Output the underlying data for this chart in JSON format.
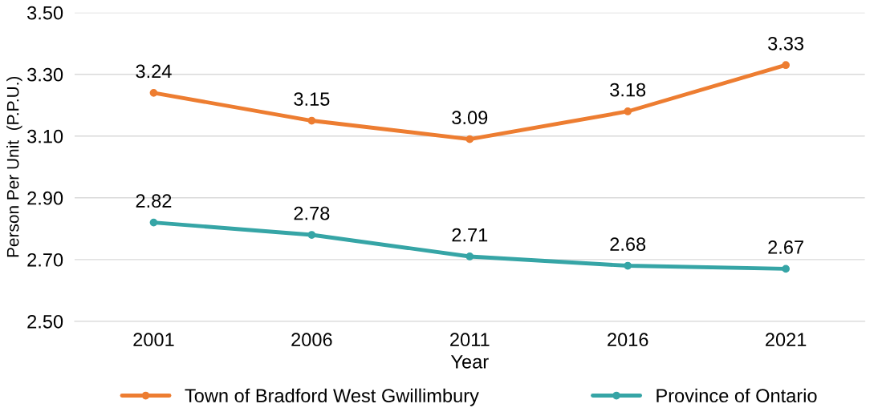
{
  "chart_data": {
    "type": "line",
    "xlabel": "Year",
    "ylabel": "Person Per Unit  (P.P.U.)",
    "categories": [
      "2001",
      "2006",
      "2011",
      "2016",
      "2021"
    ],
    "series": [
      {
        "name": "Town of Bradford West Gwillimbury",
        "color": "#ed7d31",
        "values": [
          3.24,
          3.15,
          3.09,
          3.18,
          3.33
        ]
      },
      {
        "name": "Province of Ontario",
        "color": "#36a5a6",
        "values": [
          2.82,
          2.78,
          2.71,
          2.68,
          2.67
        ]
      }
    ],
    "ylim": [
      2.5,
      3.5
    ],
    "yticks": [
      {
        "value": 2.5,
        "label": "2.50"
      },
      {
        "value": 2.7,
        "label": "2.70"
      },
      {
        "value": 2.9,
        "label": "2.90"
      },
      {
        "value": 3.1,
        "label": "3.10"
      },
      {
        "value": 3.3,
        "label": "3.30"
      },
      {
        "value": 3.5,
        "label": "3.50"
      }
    ],
    "grid": "y",
    "legend": "bottom",
    "marker": "circle",
    "line_style": "solid",
    "data_labels": true
  }
}
